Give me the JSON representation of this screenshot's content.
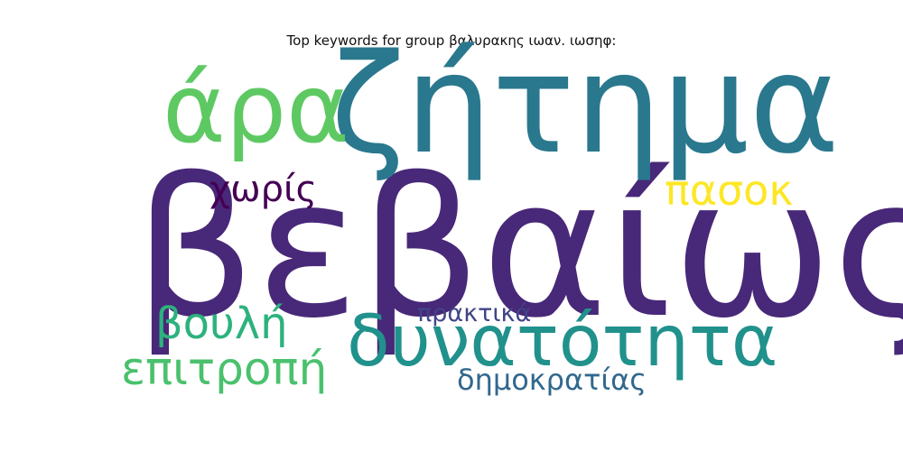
{
  "title": "Top keywords for group βαλυρακης ιωαν. ιωσηφ:",
  "words": [
    {
      "text": "βεβαίως",
      "color": "#482878"
    },
    {
      "text": "ζήτημα",
      "color": "#2a788e"
    },
    {
      "text": "άρα",
      "color": "#5ec962"
    },
    {
      "text": "δυνατότητα",
      "color": "#21918c"
    },
    {
      "text": "επιτροπή",
      "color": "#4ac16d"
    },
    {
      "text": "βουλή",
      "color": "#2db27d"
    },
    {
      "text": "πασοκ",
      "color": "#fde725"
    },
    {
      "text": "χωρίς",
      "color": "#440154"
    },
    {
      "text": "πρακτικά",
      "color": "#414487"
    },
    {
      "text": "δημοκρατίας",
      "color": "#31688e"
    }
  ]
}
